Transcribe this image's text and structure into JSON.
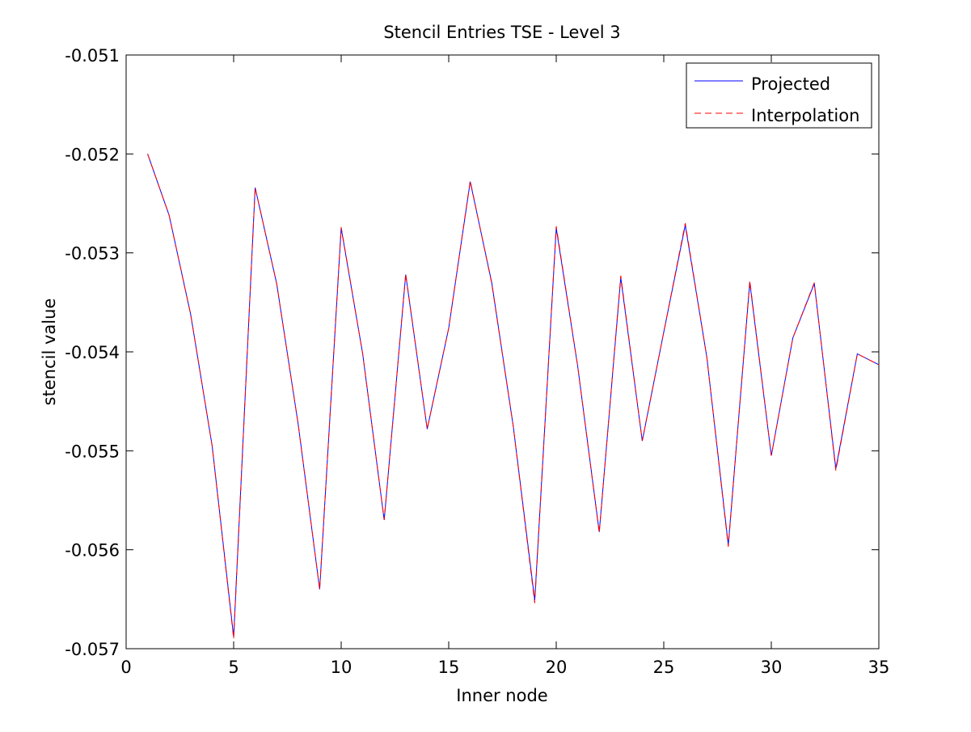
{
  "chart_data": {
    "type": "line",
    "title": "Stencil Entries TSE - Level 3",
    "xlabel": "Inner node",
    "ylabel": "stencil value",
    "xlim": [
      0,
      35
    ],
    "ylim": [
      -0.057,
      -0.051
    ],
    "xticks": [
      0,
      5,
      10,
      15,
      20,
      25,
      30,
      35
    ],
    "xtick_labels": [
      "0",
      "5",
      "10",
      "15",
      "20",
      "25",
      "30",
      "35"
    ],
    "yticks": [
      -0.057,
      -0.056,
      -0.055,
      -0.054,
      -0.053,
      -0.052,
      -0.051
    ],
    "ytick_labels": [
      "-0.057",
      "-0.056",
      "-0.055",
      "-0.054",
      "-0.053",
      "-0.052",
      "-0.051"
    ],
    "grid": false,
    "legend_position": "top-right",
    "x": [
      1,
      2,
      3,
      4,
      5,
      6,
      7,
      8,
      9,
      10,
      11,
      12,
      13,
      14,
      15,
      16,
      17,
      18,
      19,
      20,
      21,
      22,
      23,
      24,
      25,
      26,
      27,
      28,
      29,
      30,
      31,
      32,
      33,
      34,
      35
    ],
    "series": [
      {
        "name": "Projected",
        "color": "#0000ff",
        "style": "solid",
        "values": [
          -0.052,
          -0.05262,
          -0.05362,
          -0.05495,
          -0.05688,
          -0.05234,
          -0.05331,
          -0.05473,
          -0.0564,
          -0.05275,
          -0.05402,
          -0.0557,
          -0.05322,
          -0.05478,
          -0.05376,
          -0.05228,
          -0.0533,
          -0.05475,
          -0.05651,
          -0.05275,
          -0.05415,
          -0.05582,
          -0.05325,
          -0.0549,
          -0.0538,
          -0.05272,
          -0.05405,
          -0.05595,
          -0.0533,
          -0.05505,
          -0.05386,
          -0.05331,
          -0.05518,
          -0.05402,
          -0.05413
        ]
      },
      {
        "name": "Interpolation",
        "color": "#ff0000",
        "style": "dashed",
        "values": [
          -0.052,
          -0.05262,
          -0.05362,
          -0.05495,
          -0.0569,
          -0.05234,
          -0.05331,
          -0.05473,
          -0.0564,
          -0.05274,
          -0.05402,
          -0.0557,
          -0.05321,
          -0.05478,
          -0.05376,
          -0.05227,
          -0.05331,
          -0.05475,
          -0.05654,
          -0.05273,
          -0.05415,
          -0.05583,
          -0.05323,
          -0.0549,
          -0.0538,
          -0.0527,
          -0.05405,
          -0.05597,
          -0.05328,
          -0.05505,
          -0.05386,
          -0.0533,
          -0.0552,
          -0.05402,
          -0.05413
        ]
      }
    ]
  }
}
